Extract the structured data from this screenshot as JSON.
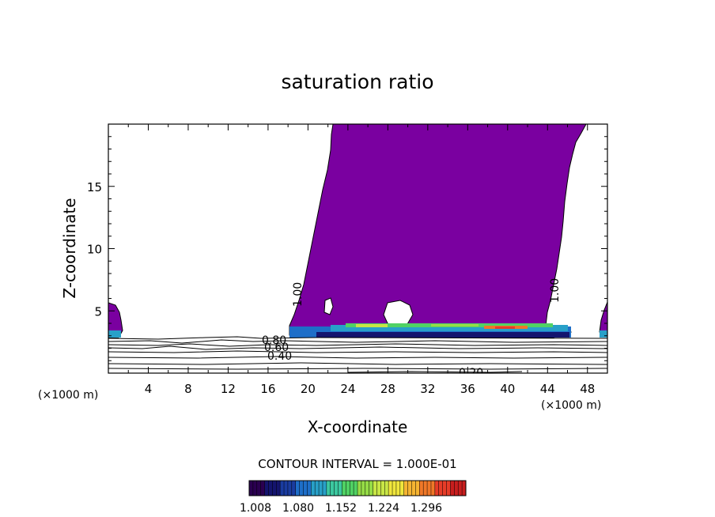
{
  "chart_data": {
    "type": "contour",
    "title": "saturation ratio",
    "xlabel": "X-coordinate",
    "ylabel": "Z-coordinate",
    "x_unit": "(×1000 m)",
    "xlim": [
      0,
      50
    ],
    "ylim": [
      0,
      20
    ],
    "x_ticks": [
      4,
      8,
      12,
      16,
      20,
      24,
      28,
      32,
      36,
      40,
      44,
      48
    ],
    "y_ticks": [
      5,
      10,
      15
    ],
    "contour_interval_text": "CONTOUR INTERVAL = 1.000E-01",
    "contour_labels": [
      {
        "text": "0.80",
        "x": 15.5,
        "z": 2.7
      },
      {
        "text": "0.60",
        "x": 15.8,
        "z": 2.2
      },
      {
        "text": "0.40",
        "x": 16.2,
        "z": 1.5
      },
      {
        "text": "1.00",
        "x": 18.9,
        "z": 6.3
      },
      {
        "text": "1.00",
        "x": 44.0,
        "z": 7.0
      },
      {
        "text": "0.20",
        "x": 36.5,
        "z": 0.1
      }
    ],
    "colorbar": {
      "ticks": [
        "1.008",
        "1.080",
        "1.152",
        "1.224",
        "1.296"
      ],
      "colors": [
        "#2a0050",
        "#14146e",
        "#1a3ca0",
        "#1e6ec8",
        "#28a0c8",
        "#3cc8a0",
        "#50d264",
        "#96dc46",
        "#c8e646",
        "#f0e63c",
        "#f5b432",
        "#f07828",
        "#e63c28",
        "#c81e1e"
      ]
    },
    "fill_color": "#7a00a0"
  }
}
